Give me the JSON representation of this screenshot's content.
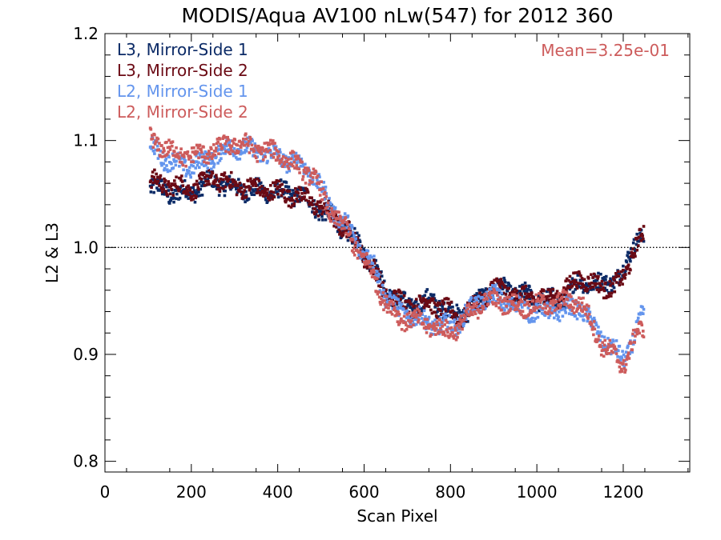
{
  "chart_data": {
    "type": "scatter",
    "title": "MODIS/Aqua AV100 nLw(547) for 2012 360",
    "xlabel": "Scan Pixel",
    "ylabel": "L2 & L3",
    "xlim": [
      0,
      1354
    ],
    "ylim": [
      0.79,
      1.2
    ],
    "xticks": [
      0,
      200,
      400,
      600,
      800,
      1000,
      1200
    ],
    "xtick_labels": [
      "0",
      "200",
      "400",
      "600",
      "800",
      "1000",
      "1200"
    ],
    "yticks": [
      0.8,
      0.9,
      1.0,
      1.1,
      1.2
    ],
    "ytick_labels": [
      "0.8",
      "0.9",
      "1.0",
      "1.1",
      "1.2"
    ],
    "reference_line": {
      "y": 1.0,
      "style": "dotted",
      "color": "#000000"
    },
    "annotation": {
      "text": "Mean=3.25e-01",
      "color": "#cd5c5c",
      "position": "top-right"
    },
    "legend_position": "top-left",
    "series": [
      {
        "name": "L3, Mirror-Side 1",
        "color": "#0b2a66",
        "points": [
          [
            105,
            1.058
          ],
          [
            150,
            1.05
          ],
          [
            200,
            1.052
          ],
          [
            250,
            1.062
          ],
          [
            300,
            1.056
          ],
          [
            350,
            1.053
          ],
          [
            400,
            1.052
          ],
          [
            450,
            1.05
          ],
          [
            480,
            1.04
          ],
          [
            520,
            1.03
          ],
          [
            560,
            1.015
          ],
          [
            590,
            1.0
          ],
          [
            620,
            0.985
          ],
          [
            650,
            0.96
          ],
          [
            680,
            0.95
          ],
          [
            710,
            0.945
          ],
          [
            750,
            0.95
          ],
          [
            780,
            0.945
          ],
          [
            820,
            0.935
          ],
          [
            860,
            0.948
          ],
          [
            900,
            0.962
          ],
          [
            950,
            0.958
          ],
          [
            1000,
            0.952
          ],
          [
            1050,
            0.95
          ],
          [
            1100,
            0.968
          ],
          [
            1150,
            0.965
          ],
          [
            1200,
            0.975
          ],
          [
            1230,
            1.01
          ],
          [
            1248,
            1.01
          ]
        ]
      },
      {
        "name": "L3, Mirror-Side 2",
        "color": "#6b0a14",
        "points": [
          [
            105,
            1.062
          ],
          [
            150,
            1.058
          ],
          [
            200,
            1.055
          ],
          [
            250,
            1.065
          ],
          [
            300,
            1.058
          ],
          [
            350,
            1.055
          ],
          [
            400,
            1.052
          ],
          [
            450,
            1.048
          ],
          [
            480,
            1.043
          ],
          [
            520,
            1.032
          ],
          [
            560,
            1.016
          ],
          [
            590,
            1.0
          ],
          [
            620,
            0.98
          ],
          [
            650,
            0.957
          ],
          [
            680,
            0.95
          ],
          [
            710,
            0.946
          ],
          [
            750,
            0.948
          ],
          [
            780,
            0.944
          ],
          [
            820,
            0.934
          ],
          [
            860,
            0.946
          ],
          [
            900,
            0.964
          ],
          [
            950,
            0.955
          ],
          [
            1000,
            0.952
          ],
          [
            1050,
            0.955
          ],
          [
            1100,
            0.972
          ],
          [
            1150,
            0.962
          ],
          [
            1200,
            0.968
          ],
          [
            1230,
            1.005
          ],
          [
            1248,
            1.012
          ]
        ]
      },
      {
        "name": "L2, Mirror-Side 1",
        "color": "#6495ed",
        "points": [
          [
            105,
            1.095
          ],
          [
            150,
            1.08
          ],
          [
            200,
            1.075
          ],
          [
            250,
            1.085
          ],
          [
            300,
            1.095
          ],
          [
            350,
            1.09
          ],
          [
            400,
            1.085
          ],
          [
            450,
            1.078
          ],
          [
            480,
            1.07
          ],
          [
            520,
            1.04
          ],
          [
            560,
            1.02
          ],
          [
            590,
            1.0
          ],
          [
            620,
            0.985
          ],
          [
            650,
            0.955
          ],
          [
            680,
            0.94
          ],
          [
            710,
            0.935
          ],
          [
            750,
            0.93
          ],
          [
            780,
            0.925
          ],
          [
            820,
            0.93
          ],
          [
            860,
            0.948
          ],
          [
            900,
            0.955
          ],
          [
            950,
            0.945
          ],
          [
            1000,
            0.94
          ],
          [
            1050,
            0.94
          ],
          [
            1100,
            0.945
          ],
          [
            1150,
            0.915
          ],
          [
            1200,
            0.895
          ],
          [
            1230,
            0.92
          ],
          [
            1248,
            0.94
          ]
        ]
      },
      {
        "name": "L2, Mirror-Side 2",
        "color": "#cd5c5c",
        "points": [
          [
            105,
            1.102
          ],
          [
            150,
            1.09
          ],
          [
            200,
            1.085
          ],
          [
            250,
            1.09
          ],
          [
            300,
            1.098
          ],
          [
            350,
            1.092
          ],
          [
            400,
            1.088
          ],
          [
            450,
            1.075
          ],
          [
            480,
            1.068
          ],
          [
            520,
            1.035
          ],
          [
            560,
            1.015
          ],
          [
            590,
            0.995
          ],
          [
            620,
            0.975
          ],
          [
            650,
            0.948
          ],
          [
            680,
            0.935
          ],
          [
            710,
            0.932
          ],
          [
            750,
            0.928
          ],
          [
            780,
            0.922
          ],
          [
            820,
            0.925
          ],
          [
            860,
            0.945
          ],
          [
            900,
            0.952
          ],
          [
            950,
            0.945
          ],
          [
            1000,
            0.945
          ],
          [
            1050,
            0.948
          ],
          [
            1100,
            0.95
          ],
          [
            1150,
            0.91
          ],
          [
            1200,
            0.89
          ],
          [
            1230,
            0.918
          ],
          [
            1248,
            0.925
          ]
        ]
      }
    ]
  }
}
